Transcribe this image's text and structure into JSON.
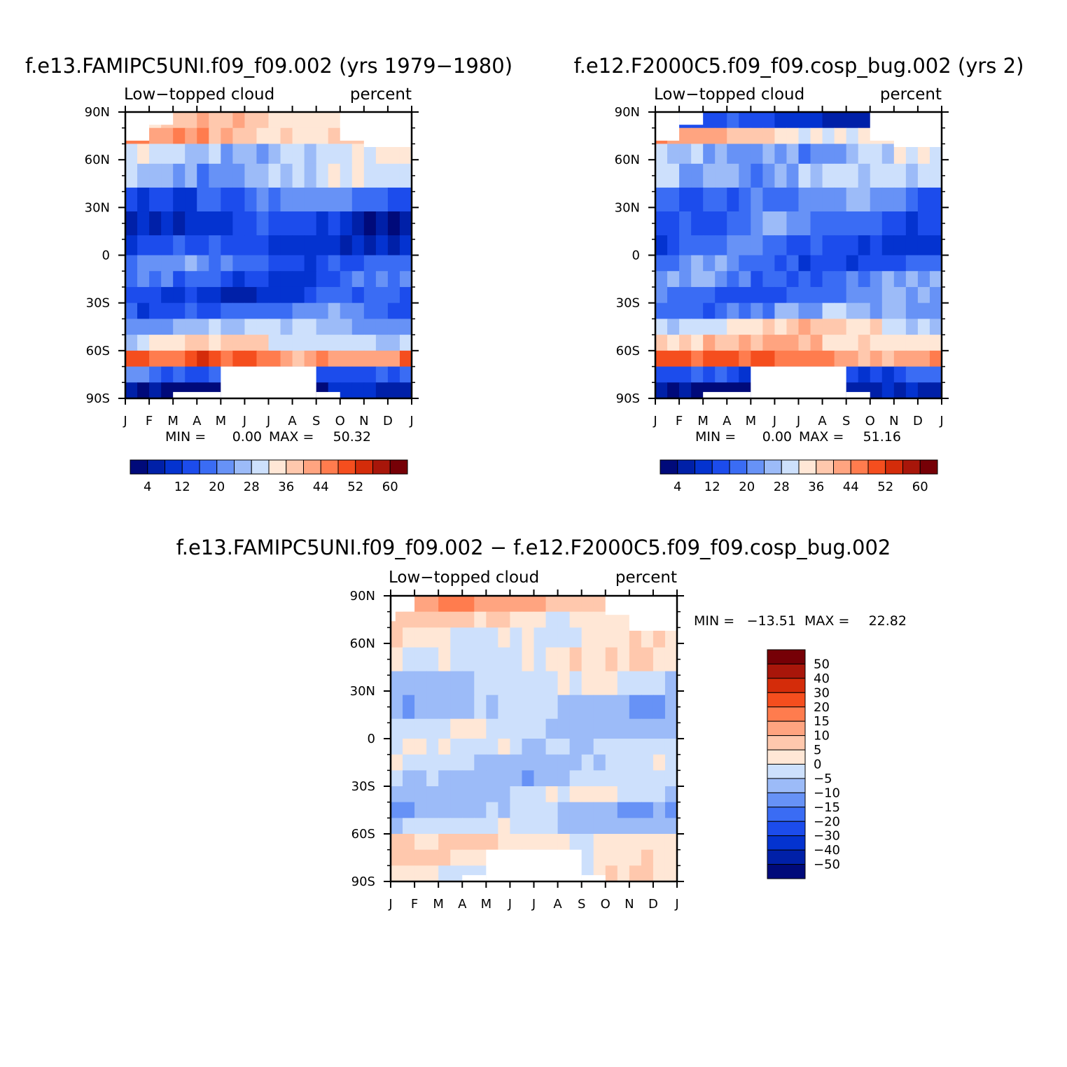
{
  "panels": [
    {
      "title": "f.e13.FAMIPC5UNI.f09_f09.002 (yrs 1979−1980)",
      "left_label": "Low−topped cloud",
      "right_label": "percent",
      "stats": {
        "min_label": "MIN =",
        "min": "0.00",
        "max_label": "MAX =",
        "max": "50.32"
      }
    },
    {
      "title": "f.e12.F2000C5.f09_f09.cosp_bug.002 (yrs 2)",
      "left_label": "Low−topped cloud",
      "right_label": "percent",
      "stats": {
        "min_label": "MIN =",
        "min": "0.00",
        "max_label": "MAX =",
        "max": "51.16"
      }
    },
    {
      "title": "f.e13.FAMIPC5UNI.f09_f09.002 − f.e12.F2000C5.f09_f09.cosp_bug.002",
      "left_label": "Low−topped cloud",
      "right_label": "percent",
      "stats": {
        "min_label": "MIN =",
        "min": "−13.51",
        "max_label": "MAX =",
        "max": "22.82"
      }
    }
  ],
  "chart_data": [
    {
      "type": "heatmap",
      "title": "f.e13.FAMIPC5UNI.f09_f09.002 (yrs 1979−1980)",
      "xlabel": "",
      "ylabel": "",
      "x_ticks": [
        "J",
        "F",
        "M",
        "A",
        "M",
        "J",
        "J",
        "A",
        "S",
        "O",
        "N",
        "D",
        "J"
      ],
      "y_ticks": [
        "90N",
        "60N",
        "30N",
        "0",
        "30S",
        "60S",
        "90S"
      ],
      "ylim": [
        -90,
        90
      ],
      "levels": [
        4,
        8,
        12,
        16,
        20,
        24,
        28,
        32,
        36,
        40,
        44,
        48,
        52,
        56,
        60
      ],
      "colorbar_labels": [
        "4",
        "12",
        "20",
        "28",
        "36",
        "44",
        "52",
        "60"
      ],
      "zonal_profile": [
        {
          "lat": 85,
          "value": 36
        },
        {
          "lat": 75,
          "value": 40
        },
        {
          "lat": 65,
          "value": 29
        },
        {
          "lat": 50,
          "value": 27
        },
        {
          "lat": 35,
          "value": 17
        },
        {
          "lat": 20,
          "value": 10
        },
        {
          "lat": 5,
          "value": 11
        },
        {
          "lat": -5,
          "value": 19
        },
        {
          "lat": -15,
          "value": 16
        },
        {
          "lat": -25,
          "value": 13
        },
        {
          "lat": -35,
          "value": 18
        },
        {
          "lat": -45,
          "value": 25
        },
        {
          "lat": -55,
          "value": 32
        },
        {
          "lat": -65,
          "value": 46
        },
        {
          "lat": -75,
          "value": 14
        },
        {
          "lat": -85,
          "value": 3
        }
      ]
    },
    {
      "type": "heatmap",
      "title": "f.e12.F2000C5.f09_f09.cosp_bug.002 (yrs 2)",
      "xlabel": "",
      "ylabel": "",
      "x_ticks": [
        "J",
        "F",
        "M",
        "A",
        "M",
        "J",
        "J",
        "A",
        "S",
        "O",
        "N",
        "D",
        "J"
      ],
      "y_ticks": [
        "90N",
        "60N",
        "30N",
        "0",
        "30S",
        "60S",
        "90S"
      ],
      "ylim": [
        -90,
        90
      ],
      "levels": [
        4,
        8,
        12,
        16,
        20,
        24,
        28,
        32,
        36,
        40,
        44,
        48,
        52,
        56,
        60
      ],
      "colorbar_labels": [
        "4",
        "12",
        "20",
        "28",
        "36",
        "44",
        "52",
        "60"
      ],
      "zonal_profile": [
        {
          "lat": 85,
          "value": 10
        },
        {
          "lat": 75,
          "value": 38
        },
        {
          "lat": 65,
          "value": 26
        },
        {
          "lat": 50,
          "value": 26
        },
        {
          "lat": 35,
          "value": 19
        },
        {
          "lat": 20,
          "value": 17
        },
        {
          "lat": 5,
          "value": 15
        },
        {
          "lat": -5,
          "value": 17
        },
        {
          "lat": -15,
          "value": 20
        },
        {
          "lat": -25,
          "value": 19
        },
        {
          "lat": -35,
          "value": 22
        },
        {
          "lat": -45,
          "value": 33
        },
        {
          "lat": -55,
          "value": 37
        },
        {
          "lat": -65,
          "value": 46
        },
        {
          "lat": -75,
          "value": 13
        },
        {
          "lat": -85,
          "value": 3
        }
      ]
    },
    {
      "type": "heatmap",
      "title": "f.e13.FAMIPC5UNI.f09_f09.002 − f.e12.F2000C5.f09_f09.cosp_bug.002",
      "xlabel": "",
      "ylabel": "",
      "x_ticks": [
        "J",
        "F",
        "M",
        "A",
        "M",
        "J",
        "J",
        "A",
        "S",
        "O",
        "N",
        "D",
        "J"
      ],
      "y_ticks": [
        "90N",
        "60N",
        "30N",
        "0",
        "30S",
        "60S",
        "90S"
      ],
      "ylim": [
        -90,
        90
      ],
      "levels": [
        -50,
        -40,
        -30,
        -20,
        -15,
        -10,
        -5,
        0,
        5,
        10,
        15,
        20,
        30,
        40,
        50
      ],
      "colorbar_labels": [
        "50",
        "40",
        "30",
        "20",
        "15",
        "10",
        "5",
        "0",
        "−5",
        "−10",
        "−15",
        "−20",
        "−30",
        "−40",
        "−50"
      ],
      "zonal_profile": [
        {
          "lat": 85,
          "value": 12
        },
        {
          "lat": 75,
          "value": 4
        },
        {
          "lat": 65,
          "value": 2
        },
        {
          "lat": 50,
          "value": 1
        },
        {
          "lat": 35,
          "value": -3
        },
        {
          "lat": 20,
          "value": -7
        },
        {
          "lat": 5,
          "value": -4
        },
        {
          "lat": -5,
          "value": -2
        },
        {
          "lat": -15,
          "value": -4
        },
        {
          "lat": -25,
          "value": -6
        },
        {
          "lat": -35,
          "value": -4
        },
        {
          "lat": -45,
          "value": -8
        },
        {
          "lat": -55,
          "value": -5
        },
        {
          "lat": -65,
          "value": 3
        },
        {
          "lat": -75,
          "value": 2
        },
        {
          "lat": -85,
          "value": 1
        }
      ]
    }
  ],
  "colors": {
    "abs_palette": [
      "#000a7a",
      "#0020a8",
      "#0433d0",
      "#1c4cec",
      "#3a6cf4",
      "#6792f6",
      "#9cbbf8",
      "#cde0fc",
      "#ffe7d6",
      "#ffc8ad",
      "#ffa480",
      "#ff7c4e",
      "#f54e1e",
      "#d42c0a",
      "#a8160a",
      "#760006"
    ],
    "diff_palette": [
      "#000a7a",
      "#0020a8",
      "#0433d0",
      "#1c4cec",
      "#3a6cf4",
      "#6792f6",
      "#9cbbf8",
      "#cde0fc",
      "#ffe7d6",
      "#ffc8ad",
      "#ffa480",
      "#ff7c4e",
      "#f54e1e",
      "#d42c0a",
      "#a8160a",
      "#760006"
    ]
  }
}
